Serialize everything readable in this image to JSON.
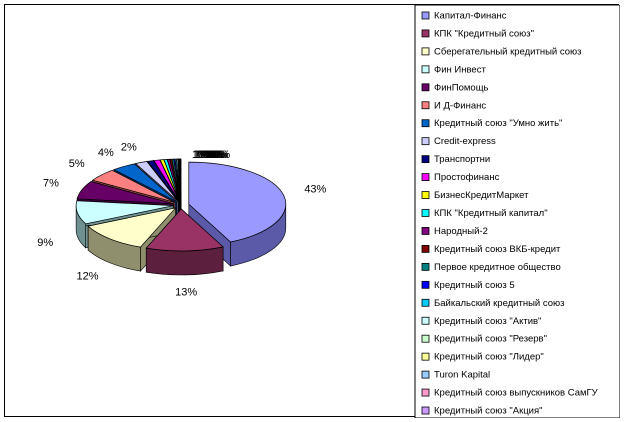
{
  "chart_data": {
    "type": "pie",
    "style": "3d-exploded",
    "legend_position": "right",
    "slices": [
      {
        "name": "Капитал-Финанс",
        "value": 43,
        "label": "43%",
        "color": "#9999ff",
        "side": "#5a5aa8"
      },
      {
        "name": "КПК \"Кредитный союз\"",
        "value": 13,
        "label": "13%",
        "color": "#993366",
        "side": "#5c1f3d"
      },
      {
        "name": "Сберегательный кредитный союз",
        "value": 12,
        "label": "12%",
        "color": "#ffffcc",
        "side": "#8f8f6e"
      },
      {
        "name": "Фин Инвест",
        "value": 9,
        "label": "9%",
        "color": "#ccffff",
        "side": "#6e9090"
      },
      {
        "name": "ФинПомощь",
        "value": 7,
        "label": "7%",
        "color": "#660066",
        "side": "#3a003a"
      },
      {
        "name": "И Д-Финанс",
        "value": 5,
        "label": "5%",
        "color": "#ff8080",
        "side": "#9a4848"
      },
      {
        "name": "Кредитный союз \"Умно жить\"",
        "value": 4,
        "label": "4%",
        "color": "#0066cc",
        "side": "#003a78"
      },
      {
        "name": "Credit-express",
        "value": 2,
        "label": "2%",
        "color": "#ccccff",
        "side": "#7474a0"
      },
      {
        "name": "Транспортни",
        "value": 1,
        "label": "1%",
        "color": "#000080",
        "side": "#00004a"
      },
      {
        "name": "Простофинанс",
        "value": 1,
        "label": "1%",
        "color": "#ff00ff",
        "side": "#900090"
      },
      {
        "name": "БизнесКредитМаркет",
        "value": 0.6,
        "label": "1%",
        "color": "#ffff00",
        "side": "#909000"
      },
      {
        "name": "КПК \"Кредитный капитал\"",
        "value": 0.5,
        "label": "0%",
        "color": "#00ffff",
        "side": "#009090"
      },
      {
        "name": "Народный-2",
        "value": 0.4,
        "label": "0%",
        "color": "#800080",
        "side": "#480048"
      },
      {
        "name": "Кредитный союз ВКБ-кредит",
        "value": 0.3,
        "label": "0%",
        "color": "#800000",
        "side": "#480000"
      },
      {
        "name": "Первое кредитное общество",
        "value": 0.3,
        "label": "0%",
        "color": "#008080",
        "side": "#004848"
      },
      {
        "name": "Кредитный союз 5",
        "value": 0.2,
        "label": "0%",
        "color": "#0000ff",
        "side": "#000090"
      },
      {
        "name": "Байкальский кредитный союз",
        "value": 0.2,
        "label": "0%",
        "color": "#00ccff",
        "side": "#007090"
      },
      {
        "name": "Кредитный союз \"Актив\"",
        "value": 0.2,
        "label": "0%",
        "color": "#ccffff",
        "side": "#709090"
      },
      {
        "name": "Кредитный союз \"Резерв\"",
        "value": 0.1,
        "label": "0%",
        "color": "#ccffcc",
        "side": "#709070"
      },
      {
        "name": "Кредитный союз \"Лидер\"",
        "value": 0.1,
        "label": "0%",
        "color": "#ffff99",
        "side": "#909050"
      },
      {
        "name": "Turon Kapital",
        "value": 0.1,
        "label": "0%",
        "color": "#99ccff",
        "side": "#507090"
      },
      {
        "name": "Кредитный союз выпускников СамГУ",
        "value": 0.1,
        "label": "0%",
        "color": "#ff99cc",
        "side": "#905070"
      },
      {
        "name": "Кредитный союз \"Акция\"",
        "value": 0.1,
        "label": "0%",
        "color": "#cc99ff",
        "side": "#705090"
      }
    ]
  }
}
